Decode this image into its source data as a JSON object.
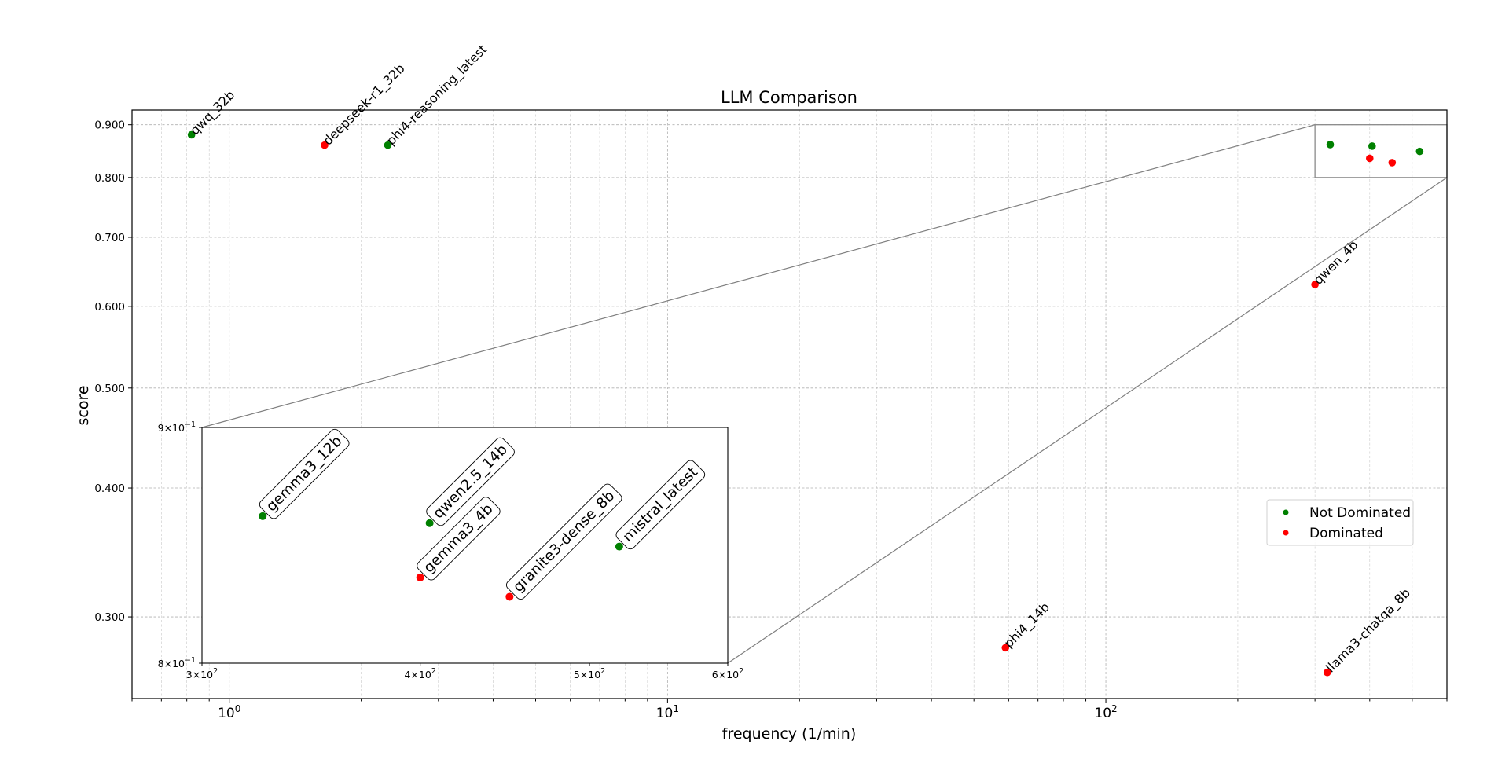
{
  "chart_data": {
    "type": "scatter",
    "title": "LLM Comparison",
    "xlabel": "frequency (1/min)",
    "ylabel": "score",
    "x_scale": "log",
    "y_scale": "log",
    "xlim": [
      0.6,
      600
    ],
    "ylim": [
      0.25,
      0.93
    ],
    "grid": true,
    "legend": {
      "placement": "right",
      "entries": [
        {
          "label": "Not Dominated",
          "color": "#008000"
        },
        {
          "label": "Dominated",
          "color": "#ff0000"
        }
      ]
    },
    "x_ticks": [
      {
        "value": 1,
        "base": "10",
        "exp": "0"
      },
      {
        "value": 10,
        "base": "10",
        "exp": "1"
      },
      {
        "value": 100,
        "base": "10",
        "exp": "2"
      }
    ],
    "y_ticks": [
      {
        "value": 0.3,
        "label": "0.300"
      },
      {
        "value": 0.4,
        "label": "0.400"
      },
      {
        "value": 0.5,
        "label": "0.500"
      },
      {
        "value": 0.6,
        "label": "0.600"
      },
      {
        "value": 0.7,
        "label": "0.700"
      },
      {
        "value": 0.8,
        "label": "0.800"
      },
      {
        "value": 0.9,
        "label": "0.900"
      }
    ],
    "series": [
      {
        "name": "Not Dominated",
        "color": "#008000",
        "points": [
          {
            "label": "qwq_32b",
            "x": 0.82,
            "y": 0.88
          },
          {
            "label": "phi4-reasoning_latest",
            "x": 2.3,
            "y": 0.86
          },
          {
            "label": "gemma3_12b",
            "x": 325,
            "y": 0.861
          },
          {
            "label": "qwen2.5_14b",
            "x": 405,
            "y": 0.858
          },
          {
            "label": "mistral_latest",
            "x": 520,
            "y": 0.848
          }
        ]
      },
      {
        "name": "Dominated",
        "color": "#ff0000",
        "points": [
          {
            "label": "deepseek-r1_32b",
            "x": 1.65,
            "y": 0.86
          },
          {
            "label": "gemma3_4b",
            "x": 400,
            "y": 0.835
          },
          {
            "label": "granite3-dense_8b",
            "x": 450,
            "y": 0.827
          },
          {
            "label": "qwen_4b",
            "x": 300,
            "y": 0.63
          },
          {
            "label": "phi4_14b",
            "x": 59,
            "y": 0.28
          },
          {
            "label": "llama3-chatqa_8b",
            "x": 320,
            "y": 0.265
          }
        ]
      }
    ],
    "zoom_inset": {
      "xlim": [
        300,
        600
      ],
      "ylim": [
        0.8,
        0.9
      ],
      "x_ticks": [
        {
          "value": 300,
          "mant": "3",
          "base": "10",
          "exp": "2"
        },
        {
          "value": 400,
          "mant": "4",
          "base": "10",
          "exp": "2"
        },
        {
          "value": 500,
          "mant": "5",
          "base": "10",
          "exp": "2"
        },
        {
          "value": 600,
          "mant": "6",
          "base": "10",
          "exp": "2"
        }
      ],
      "y_ticks": [
        {
          "value": 0.8,
          "mant": "8",
          "base": "10",
          "exp": "−1"
        },
        {
          "value": 0.9,
          "mant": "9",
          "base": "10",
          "exp": "−1"
        }
      ],
      "labeled_points": [
        "gemma3_12b",
        "qwen2.5_14b",
        "gemma3_4b",
        "granite3-dense_8b",
        "mistral_latest"
      ]
    }
  }
}
